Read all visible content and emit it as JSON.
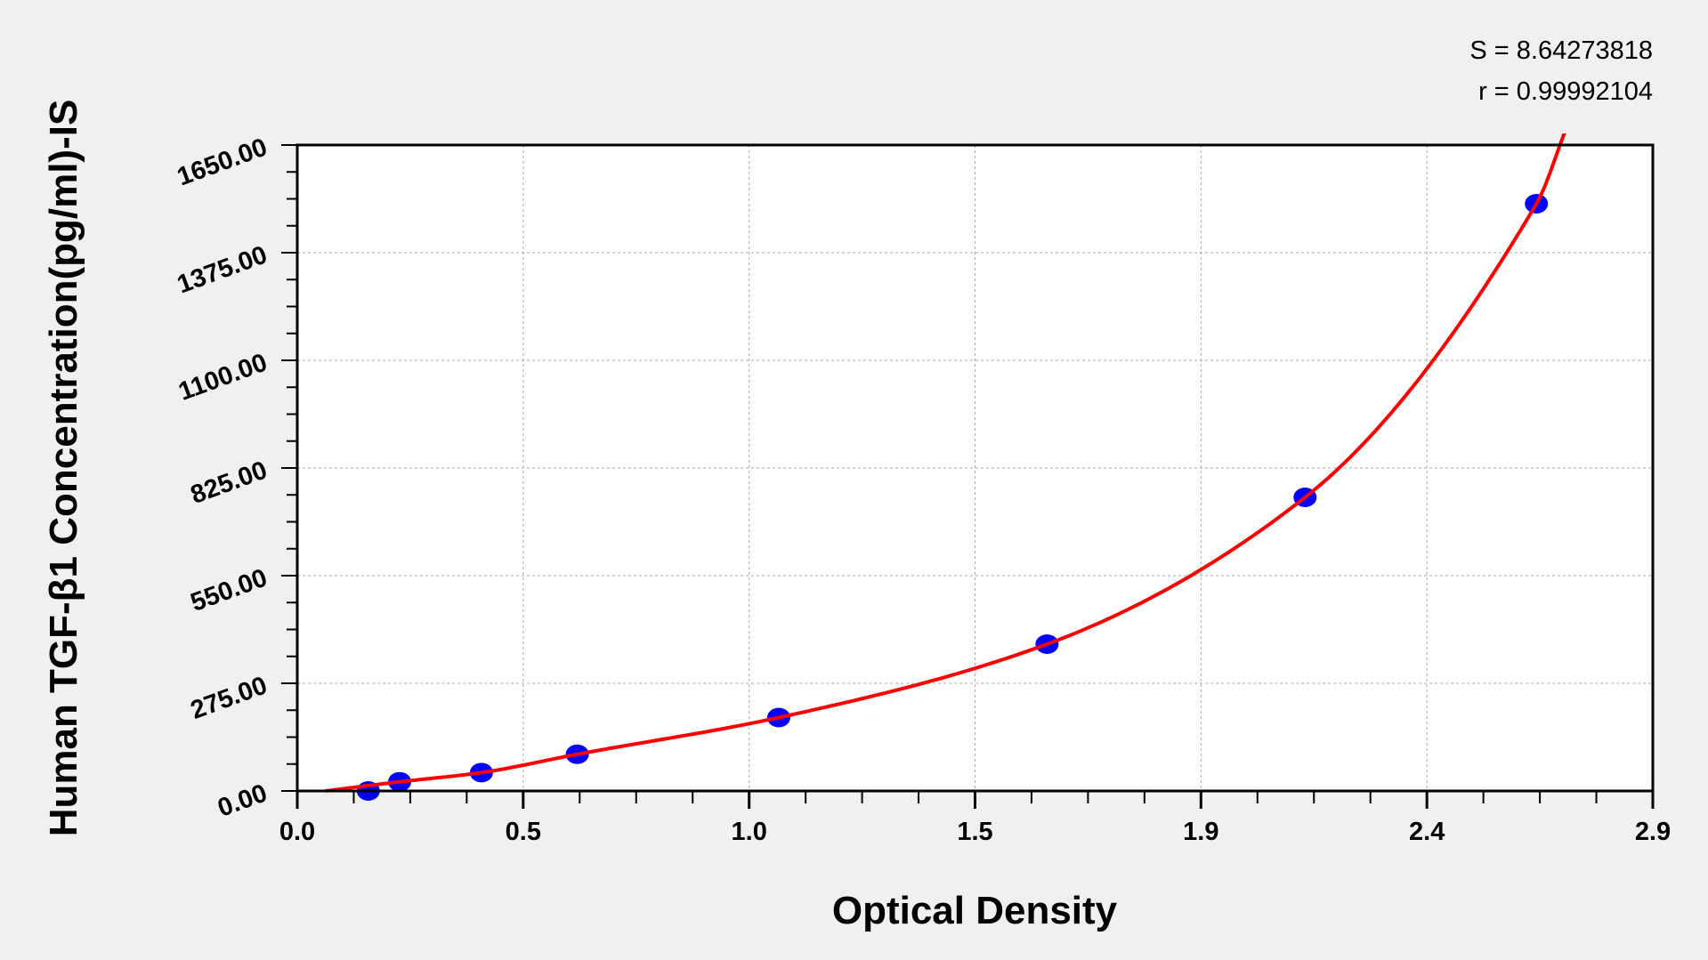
{
  "chart_data": {
    "type": "scatter",
    "title": "",
    "xlabel": "Optical Density",
    "ylabel": "Human TGF-β1 Concentration(pg/ml)-IS",
    "xlim": [
      0,
      2.9
    ],
    "ylim": [
      0,
      1650
    ],
    "xtick_values": [
      0,
      0.4833,
      0.9667,
      1.45,
      1.9333,
      2.4167,
      2.9
    ],
    "xtick_labels": [
      "0.0",
      "0.5",
      "1.0",
      "1.5",
      "1.9",
      "2.4",
      "2.9"
    ],
    "ytick_values": [
      0,
      275,
      550,
      825,
      1100,
      1375,
      1650
    ],
    "ytick_labels": [
      "0.00",
      "275.00",
      "550.00",
      "825.00",
      "1100.00",
      "1375.00",
      "1650.00"
    ],
    "grid": true,
    "annotations": [
      "S = 8.64273818",
      "r = 0.99992104"
    ],
    "series": [
      {
        "kind": "points",
        "color": "#0000ff",
        "x": [
          0.152,
          0.219,
          0.394,
          0.599,
          1.03,
          1.604,
          2.156,
          2.651
        ],
        "y": [
          0,
          23.4,
          46.9,
          93.75,
          187.5,
          375,
          750,
          1500
        ]
      },
      {
        "kind": "fit-curve",
        "color": "#ff0000",
        "x_range": [
          0.06,
          2.714
        ]
      }
    ]
  }
}
